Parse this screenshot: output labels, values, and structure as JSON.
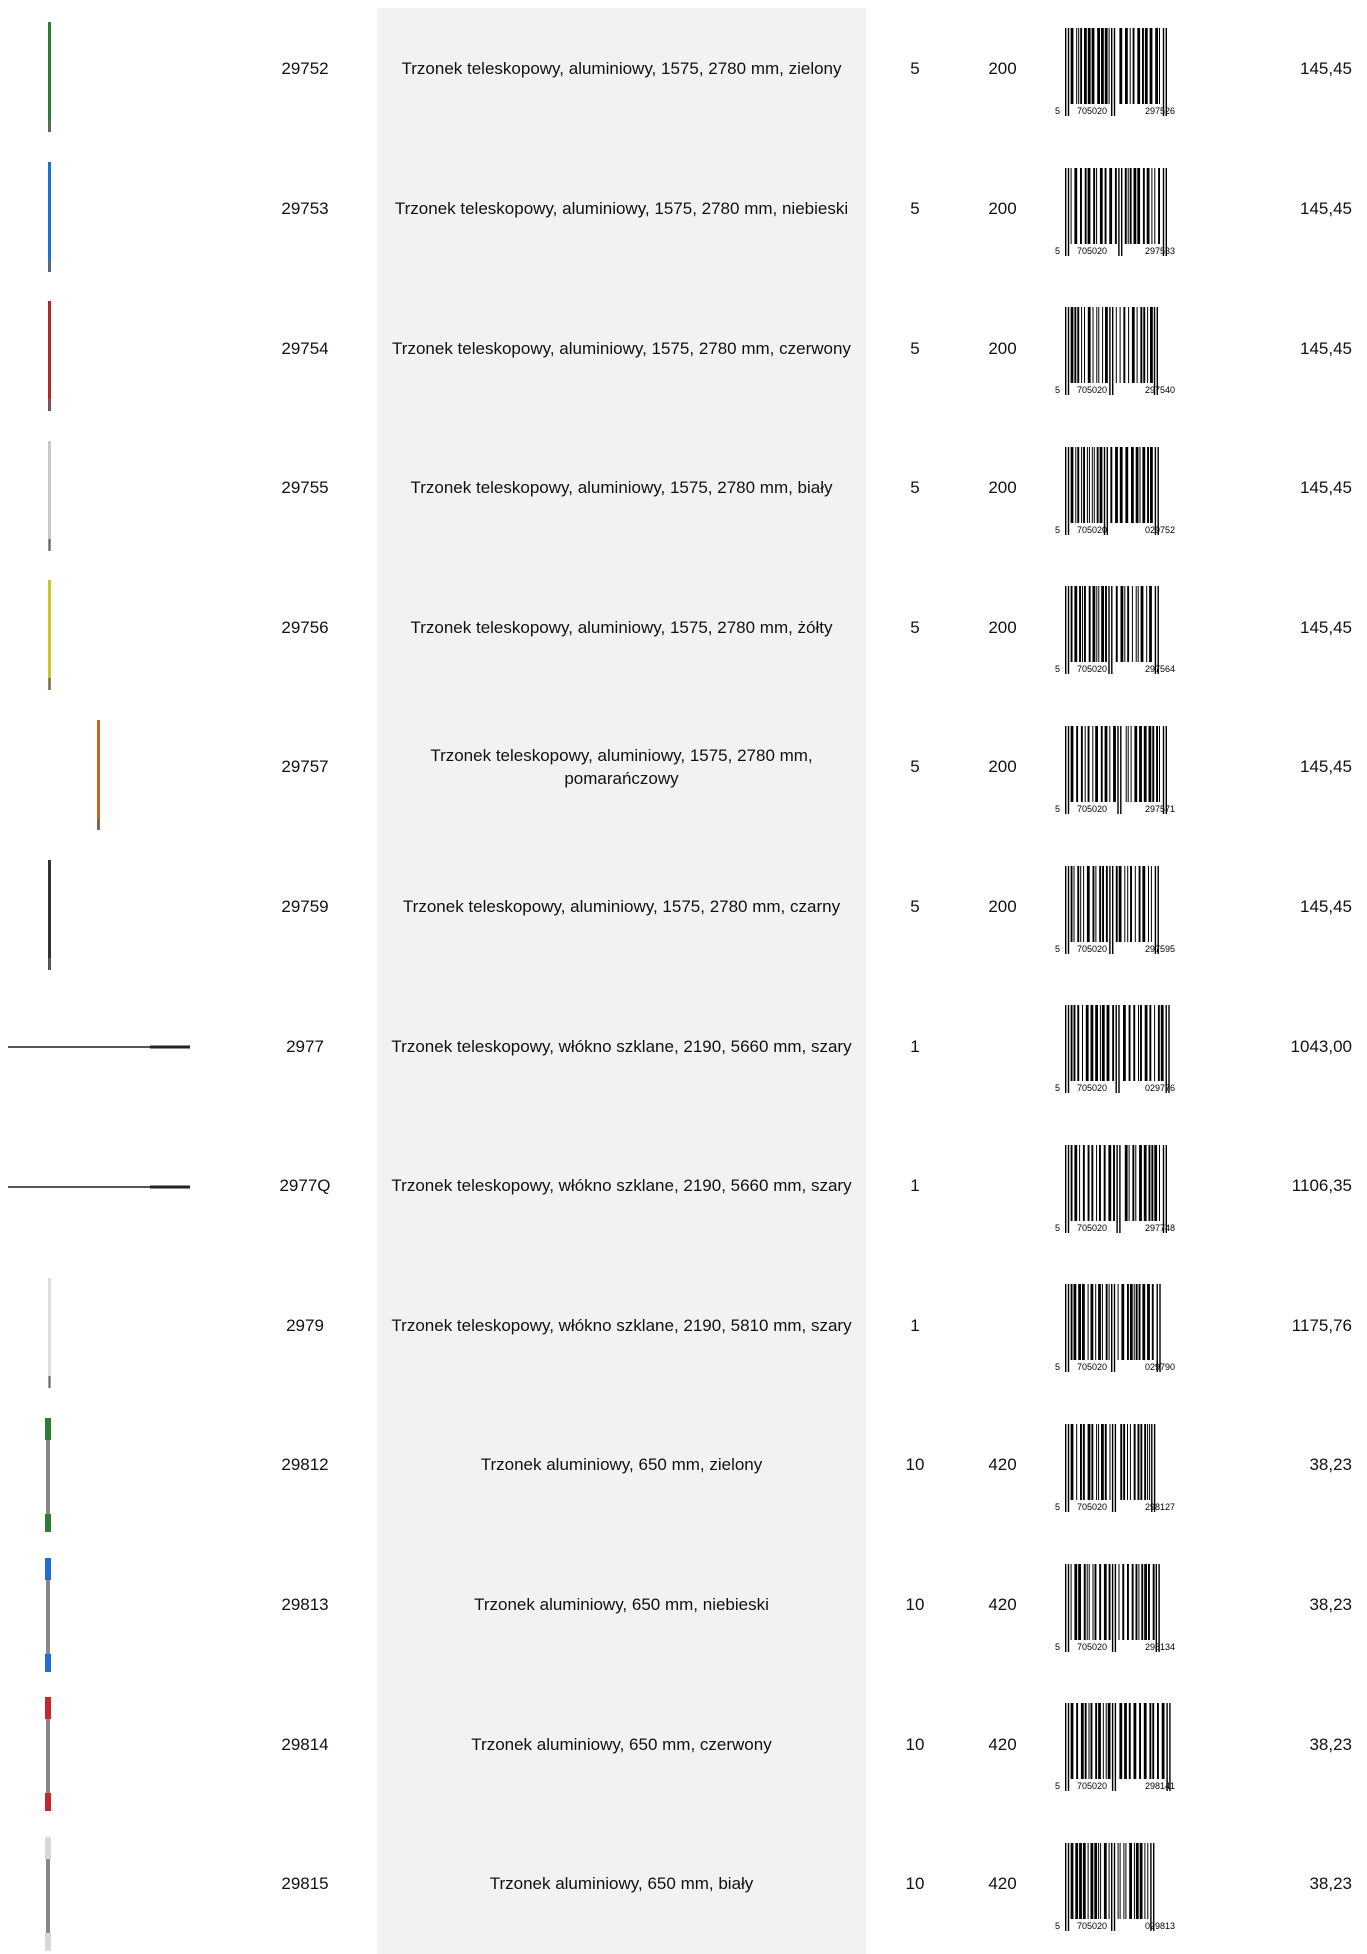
{
  "rows": [
    {
      "code": "29752",
      "description": "Trzonek teleskopowy, aluminiowy, 1575, 2780 mm, zielony",
      "qty": "5",
      "pallet": "200",
      "barcode": [
        "5",
        "705020",
        "297526"
      ],
      "price": "145,45",
      "color": "#2e7d32",
      "style": "long"
    },
    {
      "code": "29753",
      "description": "Trzonek teleskopowy, aluminiowy, 1575, 2780 mm, niebieski",
      "qty": "5",
      "pallet": "200",
      "barcode": [
        "5",
        "705020",
        "297533"
      ],
      "price": "145,45",
      "color": "#1e6fd0",
      "style": "long"
    },
    {
      "code": "29754",
      "description": "Trzonek teleskopowy, aluminiowy, 1575, 2780 mm, czerwony",
      "qty": "5",
      "pallet": "200",
      "barcode": [
        "5",
        "705020",
        "297540"
      ],
      "price": "145,45",
      "color": "#b3262e",
      "style": "long"
    },
    {
      "code": "29755",
      "description": "Trzonek teleskopowy, aluminiowy, 1575, 2780 mm, biały",
      "qty": "5",
      "pallet": "200",
      "barcode": [
        "5",
        "705020",
        "029752"
      ],
      "price": "145,45",
      "color": "#c8c8c8",
      "style": "long"
    },
    {
      "code": "29756",
      "description": "Trzonek teleskopowy, aluminiowy, 1575, 2780 mm, żółty",
      "qty": "5",
      "pallet": "200",
      "barcode": [
        "5",
        "705020",
        "297564"
      ],
      "price": "145,45",
      "color": "#c9c42a",
      "style": "long"
    },
    {
      "code": "29757",
      "description": "Trzonek teleskopowy, aluminiowy, 1575, 2780 mm, pomarańczowy",
      "qty": "5",
      "pallet": "200",
      "barcode": [
        "5",
        "705020",
        "297571"
      ],
      "price": "145,45",
      "color": "#c9661e",
      "style": "offset"
    },
    {
      "code": "29759",
      "description": "Trzonek teleskopowy, aluminiowy, 1575, 2780 mm, czarny",
      "qty": "5",
      "pallet": "200",
      "barcode": [
        "5",
        "705020",
        "297595"
      ],
      "price": "145,45",
      "color": "#333333",
      "style": "long"
    },
    {
      "code": "2977",
      "description": "Trzonek teleskopowy, włókno szklane, 2190, 5660 mm, szary",
      "qty": "1",
      "pallet": null,
      "barcode": [
        "5",
        "705020",
        "029776"
      ],
      "price": "1043,00",
      "color": "#555555",
      "style": "horizontal"
    },
    {
      "code": "2977Q",
      "description": "Trzonek teleskopowy, włókno szklane, 2190, 5660 mm, szary",
      "qty": "1",
      "pallet": null,
      "barcode": [
        "5",
        "705020",
        "297748"
      ],
      "price": "1106,35",
      "color": "#555555",
      "style": "horizontal"
    },
    {
      "code": "2979",
      "description": "Trzonek teleskopowy, włókno szklane, 2190, 5810 mm, szary",
      "qty": "1",
      "pallet": null,
      "barcode": [
        "5",
        "705020",
        "029790"
      ],
      "price": "1175,76",
      "color": "#dddddd",
      "style": "long"
    },
    {
      "code": "29812",
      "description": "Trzonek aluminiowy, 650 mm, zielony",
      "qty": "10",
      "pallet": "420",
      "barcode": [
        "5",
        "705020",
        "298127"
      ],
      "price": "38,23",
      "color": "#2e7d32",
      "style": "short"
    },
    {
      "code": "29813",
      "description": "Trzonek aluminiowy, 650 mm, niebieski",
      "qty": "10",
      "pallet": "420",
      "barcode": [
        "5",
        "705020",
        "298134"
      ],
      "price": "38,23",
      "color": "#1e6fd0",
      "style": "short"
    },
    {
      "code": "29814",
      "description": "Trzonek aluminiowy, 650 mm, czerwony",
      "qty": "10",
      "pallet": "420",
      "barcode": [
        "5",
        "705020",
        "298141"
      ],
      "price": "38,23",
      "color": "#c8262e",
      "style": "short"
    },
    {
      "code": "29815",
      "description": "Trzonek aluminiowy, 650 mm, biały",
      "qty": "10",
      "pallet": "420",
      "barcode": [
        "5",
        "705020",
        "029813"
      ],
      "price": "38,23",
      "color": "#d8d8d8",
      "style": "short"
    }
  ]
}
